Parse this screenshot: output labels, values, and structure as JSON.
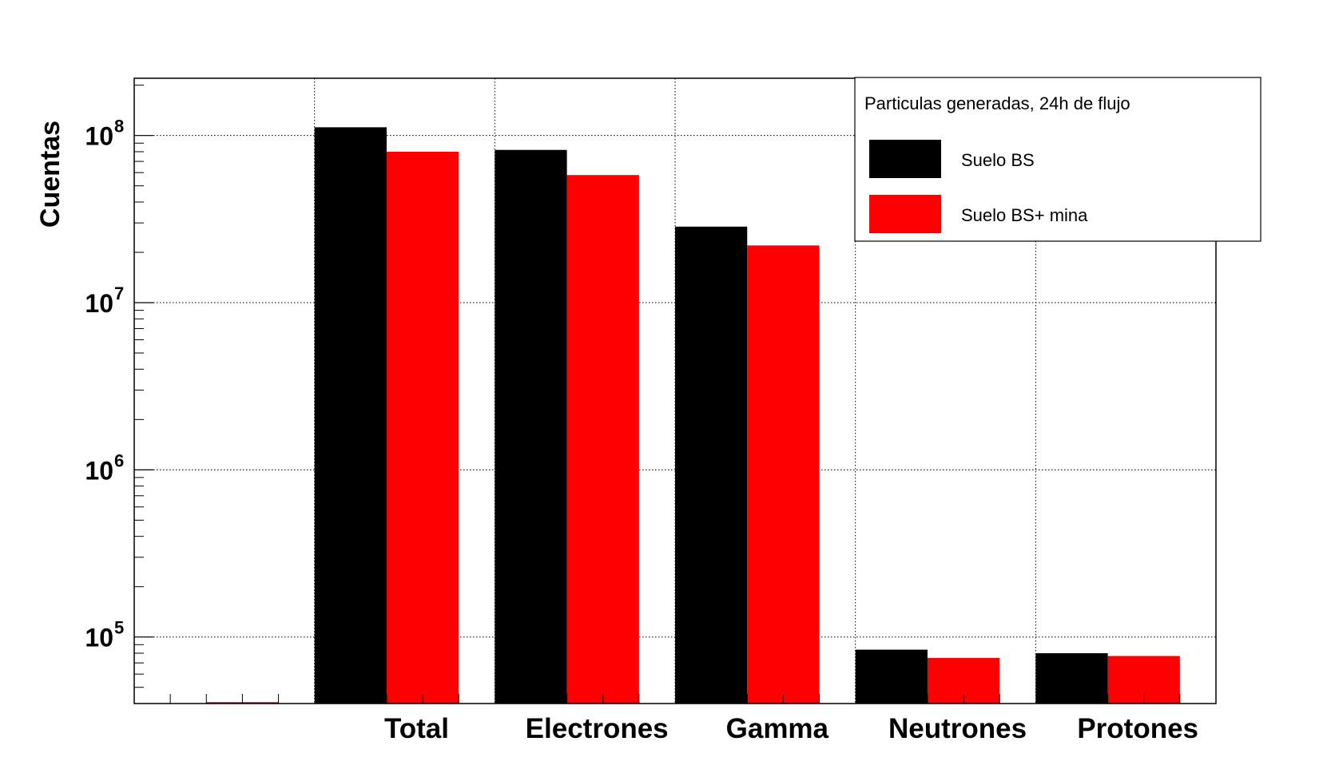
{
  "chart_data": {
    "type": "bar",
    "categories": [
      "",
      "Total",
      "Electrones",
      "Gamma",
      "Neutrones",
      "Protones"
    ],
    "series": [
      {
        "name": "Suelo BS",
        "color": "#000000",
        "values": [
          0,
          112000000,
          82000000,
          28500000,
          84000,
          80000
        ]
      },
      {
        "name": "Suelo BS+ mina",
        "color": "#ff0000",
        "values": [
          0,
          80000000,
          58000000,
          22000000,
          75000,
          77000
        ]
      }
    ],
    "title": "",
    "xlabel": "",
    "ylabel": "Cuentas",
    "y_scale": "log",
    "ylim": [
      40000,
      220000000
    ],
    "y_ticks": [
      {
        "value": 100000,
        "base": "10",
        "exp": "5"
      },
      {
        "value": 1000000,
        "base": "10",
        "exp": "6"
      },
      {
        "value": 10000000,
        "base": "10",
        "exp": "7"
      },
      {
        "value": 100000000,
        "base": "10",
        "exp": "8"
      }
    ],
    "grid": true,
    "legend": {
      "title": "Particulas generadas, 24h de flujo",
      "placement": "top-right"
    }
  }
}
